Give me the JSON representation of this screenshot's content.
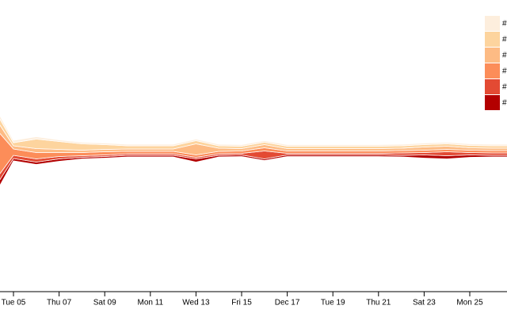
{
  "chart_data": {
    "type": "streamgraph",
    "categories": [
      null,
      "Tue 05",
      null,
      "Thu 07",
      null,
      "Sat 09",
      null,
      "Mon 11",
      null,
      "Wed 13",
      null,
      "Fri 15",
      null,
      "Dec 17",
      null,
      "Tue 19",
      null,
      "Thu 21",
      null,
      "Sat 23",
      null,
      "Mon 25",
      null,
      null
    ],
    "series": [
      {
        "name": "#",
        "color": "#fdeedd",
        "values": [
          5,
          3,
          3,
          2,
          2,
          2,
          2,
          2,
          2,
          2,
          2,
          2,
          2,
          2,
          2,
          2,
          2,
          2,
          2,
          2,
          2,
          2,
          2,
          2
        ]
      },
      {
        "name": "#",
        "color": "#fdd49e",
        "values": [
          10,
          4,
          12,
          10,
          8,
          6,
          4,
          4,
          4,
          4,
          3,
          3,
          3,
          3,
          3,
          3,
          3,
          3,
          3,
          3,
          3,
          3,
          3,
          3
        ]
      },
      {
        "name": "#",
        "color": "#fdbb84",
        "values": [
          15,
          4,
          5,
          4,
          3,
          3,
          3,
          3,
          3,
          14,
          4,
          3,
          4,
          3,
          3,
          3,
          3,
          3,
          3,
          4,
          4,
          3,
          3,
          3
        ]
      },
      {
        "name": "#",
        "color": "#fc8d59",
        "values": [
          80,
          8,
          8,
          5,
          4,
          4,
          3,
          3,
          3,
          3,
          3,
          3,
          4,
          3,
          3,
          3,
          3,
          3,
          3,
          3,
          3,
          3,
          3,
          3
        ]
      },
      {
        "name": "#",
        "color": "#e34a33",
        "values": [
          10,
          4,
          4,
          3,
          2,
          2,
          2,
          2,
          2,
          2,
          2,
          2,
          10,
          2,
          2,
          2,
          2,
          2,
          3,
          3,
          5,
          3,
          3,
          3
        ]
      },
      {
        "name": "#",
        "color": "#b30000",
        "values": [
          10,
          3,
          3,
          3,
          2,
          2,
          2,
          2,
          2,
          4,
          2,
          2,
          2,
          2,
          2,
          2,
          2,
          2,
          2,
          4,
          4,
          3,
          2,
          2
        ]
      }
    ]
  }
}
